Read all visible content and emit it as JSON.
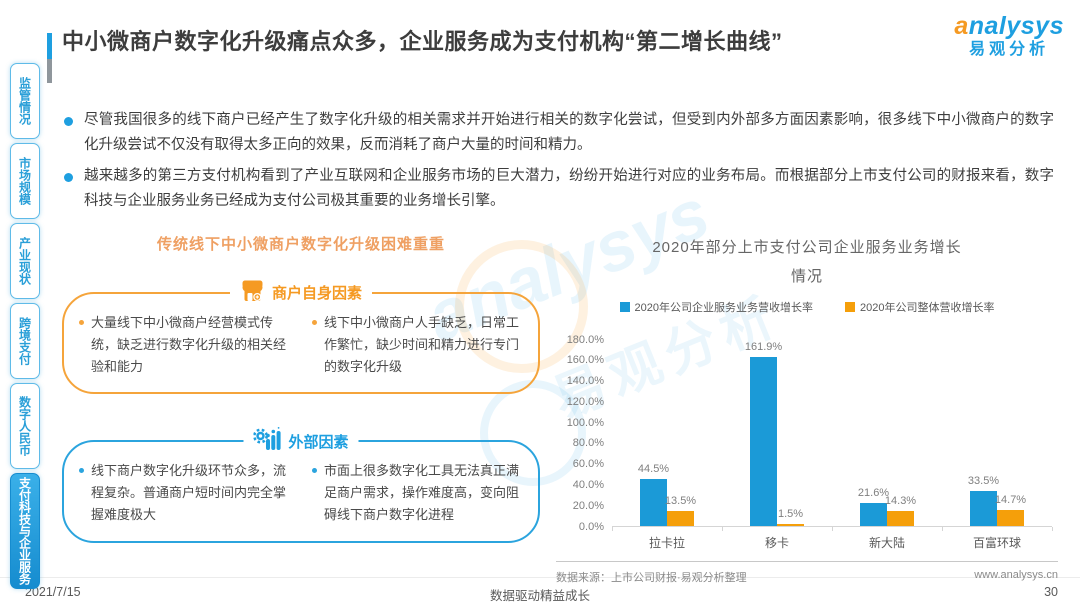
{
  "header": {
    "title": "中小微商户数字化升级痛点众多，企业服务成为支付机构“第二增长曲线”"
  },
  "logo": {
    "name_en": "analysys",
    "name_cn": "易观分析"
  },
  "sidebar": {
    "items": [
      {
        "label": "监管情况",
        "active": false
      },
      {
        "label": "市场规模",
        "active": false
      },
      {
        "label": "产业现状",
        "active": false
      },
      {
        "label": "跨境支付",
        "active": false
      },
      {
        "label": "数字人民币",
        "active": false
      },
      {
        "label": "支付科技与企业服务",
        "active": true
      }
    ]
  },
  "bullets": [
    "尽管我国很多的线下商户已经产生了数字化升级的相关需求并开始进行相关的数字化尝试，但受到内外部多方面因素影响，很多线下中小微商户的数字化升级尝试不仅没有取得太多正向的效果，反而消耗了商户大量的时间和精力。",
    "越来越多的第三方支付机构看到了产业互联网和企业服务市场的巨大潜力，纷纷开始进行对应的业务布局。而根据部分上市支付公司的财报来看，数字科技与企业服务业务已经成为支付公司极其重要的业务增长引擎。"
  ],
  "left_panel": {
    "title": "传统线下中小微商户数字化升级困难重重",
    "boxes": [
      {
        "header": "商户自身因素",
        "icon": "storefront-icon",
        "accent_color": "#f59a23",
        "items": [
          "大量线下中小微商户经营模式传统，缺乏进行数字化升级的相关经验和能力",
          "线下中小微商户人手缺乏，日常工作繁忙，缺少时间和精力进行专门的数字化升级"
        ]
      },
      {
        "header": "外部因素",
        "icon": "gear-bars-icon",
        "accent_color": "#1e9fe0",
        "items": [
          "线下商户数字化升级环节众多，流程复杂。普通商户短时间内完全掌握难度极大",
          "市面上很多数字化工具无法真正满足商户需求，操作难度高，变向阻碍线下商户数字化进程"
        ]
      }
    ]
  },
  "chart_data": {
    "type": "bar",
    "title": "2020年部分上市支付公司企业服务业务增长情况",
    "categories": [
      "拉卡拉",
      "移卡",
      "新大陆",
      "百富环球"
    ],
    "series": [
      {
        "name": "2020年公司企业服务业务营收增长率",
        "color": "#1b9ad7",
        "values": [
          44.5,
          161.9,
          21.6,
          33.5
        ]
      },
      {
        "name": "2020年公司整体营收增长率",
        "color": "#f59f0a",
        "values": [
          13.5,
          1.5,
          14.3,
          14.7
        ]
      }
    ],
    "unit": "%",
    "ylim": [
      0,
      180
    ],
    "y_ticks": [
      "0.0%",
      "20.0%",
      "40.0%",
      "60.0%",
      "80.0%",
      "100.0%",
      "120.0%",
      "140.0%",
      "160.0%",
      "180.0%"
    ],
    "grid": false,
    "legend_position": "top"
  },
  "chart_source": {
    "source": "数据来源：上市公司财报·易观分析整理",
    "website": "www.analysys.cn"
  },
  "footer": {
    "date": "2021/7/15",
    "slogan": "数据驱动精益成长",
    "page": "30"
  },
  "watermark": {
    "text_en": "analysys",
    "text_cn": "易观分析"
  }
}
